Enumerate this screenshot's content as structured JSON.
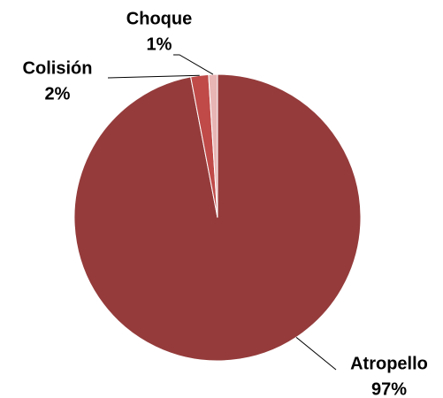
{
  "chart_data": {
    "type": "pie",
    "categories": [
      "Atropello",
      "Colisión",
      "Choque"
    ],
    "values": [
      97,
      2,
      1
    ],
    "value_labels": [
      "97%",
      "2%",
      "1%"
    ],
    "colors": [
      "#953b3b",
      "#bf4a48",
      "#e8b5b4"
    ]
  }
}
